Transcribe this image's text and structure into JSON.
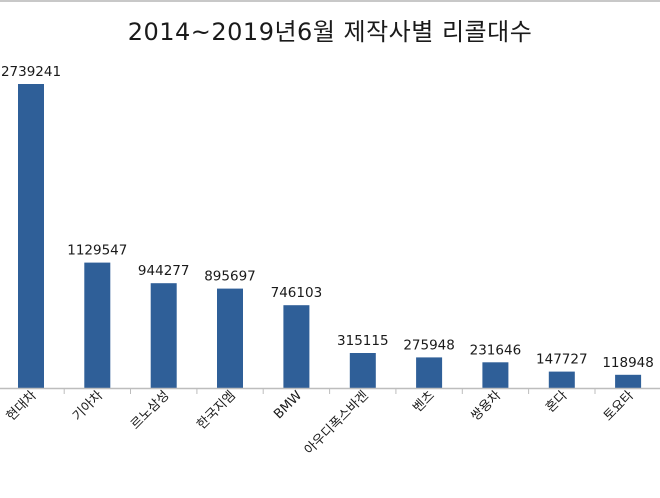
{
  "chart_data": {
    "type": "bar",
    "title": "2014~2019년6월 제작사별 리콜대수",
    "xlabel": "",
    "ylabel": "",
    "categories": [
      "현대차",
      "기아차",
      "르노삼성",
      "한국지엠",
      "BMW",
      "아우디폭스바겐",
      "벤츠",
      "쌍용차",
      "혼다",
      "토요타"
    ],
    "values": [
      2739241,
      1129547,
      944277,
      895697,
      746103,
      315115,
      275948,
      231646,
      147727,
      118948
    ],
    "ylim": [
      0,
      2739241
    ],
    "grid": false,
    "legend": "none",
    "data_labels": true,
    "bar_color": "#2f5f98",
    "axis_color": "#bdbdbd"
  }
}
